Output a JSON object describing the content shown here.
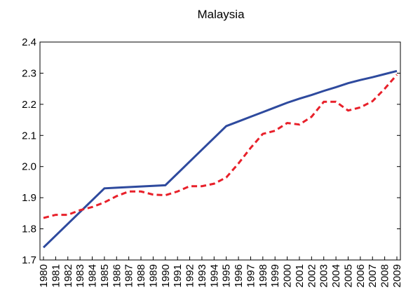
{
  "chart_data": {
    "type": "line",
    "title": "Malaysia",
    "categories": [
      "1980",
      "1981",
      "1982",
      "1983",
      "1984",
      "1985",
      "1986",
      "1987",
      "1988",
      "1989",
      "1990",
      "1991",
      "1992",
      "1993",
      "1994",
      "1995",
      "1996",
      "1997",
      "1998",
      "1999",
      "2000",
      "2001",
      "2002",
      "2003",
      "2004",
      "2005",
      "2006",
      "2007",
      "2008",
      "2009"
    ],
    "series": [
      {
        "color": "#2e4a9e",
        "dash": false,
        "values": [
          1.74,
          1.778,
          1.816,
          1.854,
          1.892,
          1.93,
          1.932,
          1.934,
          1.936,
          1.938,
          1.94,
          1.978,
          2.016,
          2.054,
          2.092,
          2.13,
          2.145,
          2.16,
          2.175,
          2.19,
          2.205,
          2.218,
          2.23,
          2.243,
          2.255,
          2.268,
          2.278,
          2.287,
          2.297,
          2.307
        ]
      },
      {
        "color": "#e8202a",
        "dash": true,
        "values": [
          1.835,
          1.845,
          1.845,
          1.86,
          1.87,
          1.885,
          1.905,
          1.92,
          1.92,
          1.91,
          1.908,
          1.92,
          1.937,
          1.937,
          1.945,
          1.965,
          2.01,
          2.06,
          2.105,
          2.115,
          2.14,
          2.135,
          2.16,
          2.208,
          2.208,
          2.18,
          2.19,
          2.21,
          2.25,
          2.295
        ]
      }
    ],
    "ylim": [
      1.7,
      2.4
    ],
    "yticks": [
      1.7,
      1.8,
      1.9,
      {
        "value": 2,
        "label": "2.0"
      },
      2.1,
      2.2,
      2.3,
      2.4
    ]
  }
}
